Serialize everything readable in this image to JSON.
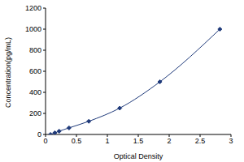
{
  "chart_data": {
    "type": "line",
    "x_label": "Optical Density",
    "y_label": "Concentration(pg/mL)",
    "x": [
      0.08,
      0.15,
      0.22,
      0.38,
      0.7,
      1.2,
      1.85,
      2.82
    ],
    "values": [
      0,
      15.6,
      31.2,
      62.5,
      125,
      250,
      500,
      1000
    ],
    "color": "#1f3a7a",
    "marker": "diamond",
    "xlim": [
      0,
      3
    ],
    "xticks": [
      0,
      0.5,
      1,
      1.5,
      2,
      2.5,
      3
    ],
    "ylim": [
      0,
      1200
    ],
    "yticks": [
      0,
      200,
      400,
      600,
      800,
      1000,
      1200
    ],
    "grid": false
  }
}
